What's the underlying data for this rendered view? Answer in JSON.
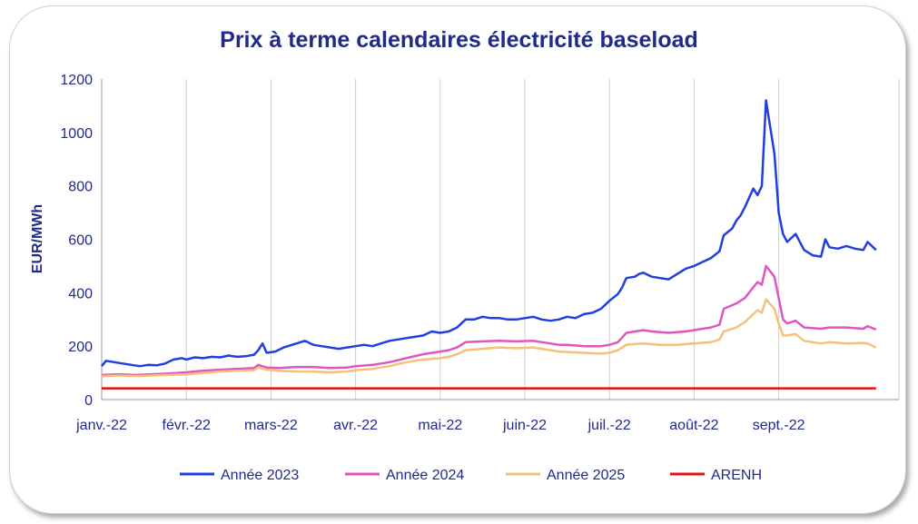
{
  "chart_data": {
    "type": "line",
    "title": "Prix à terme calendaires électricité baseload",
    "xlabel": "",
    "ylabel": "EUR/MWh",
    "ylim": [
      0,
      1200
    ],
    "yticks": [
      0,
      200,
      400,
      600,
      800,
      1000,
      1200
    ],
    "xlim": [
      0,
      8.7
    ],
    "xticks": [
      {
        "pos": 0,
        "label": "janv.-22"
      },
      {
        "pos": 1,
        "label": "févr.-22"
      },
      {
        "pos": 2,
        "label": "mars-22"
      },
      {
        "pos": 3,
        "label": "avr.-22"
      },
      {
        "pos": 4,
        "label": "mai-22"
      },
      {
        "pos": 5,
        "label": "juin-22"
      },
      {
        "pos": 6,
        "label": "juil.-22"
      },
      {
        "pos": 7,
        "label": "août-22"
      },
      {
        "pos": 8,
        "label": "sept.-22"
      }
    ],
    "grid": "vertical",
    "legend_position": "bottom",
    "series": [
      {
        "name": "Année 2023",
        "color": "#1f3fe0",
        "points": [
          [
            0,
            125
          ],
          [
            0.05,
            145
          ],
          [
            0.15,
            140
          ],
          [
            0.25,
            135
          ],
          [
            0.35,
            130
          ],
          [
            0.45,
            125
          ],
          [
            0.55,
            130
          ],
          [
            0.65,
            128
          ],
          [
            0.75,
            135
          ],
          [
            0.85,
            150
          ],
          [
            0.95,
            155
          ],
          [
            1.0,
            150
          ],
          [
            1.1,
            158
          ],
          [
            1.2,
            155
          ],
          [
            1.3,
            160
          ],
          [
            1.4,
            158
          ],
          [
            1.5,
            165
          ],
          [
            1.6,
            160
          ],
          [
            1.7,
            162
          ],
          [
            1.8,
            168
          ],
          [
            1.85,
            185
          ],
          [
            1.9,
            210
          ],
          [
            1.95,
            175
          ],
          [
            2.05,
            180
          ],
          [
            2.15,
            195
          ],
          [
            2.25,
            205
          ],
          [
            2.35,
            215
          ],
          [
            2.4,
            220
          ],
          [
            2.5,
            205
          ],
          [
            2.6,
            200
          ],
          [
            2.7,
            195
          ],
          [
            2.8,
            190
          ],
          [
            2.9,
            195
          ],
          [
            3.0,
            200
          ],
          [
            3.1,
            205
          ],
          [
            3.2,
            200
          ],
          [
            3.3,
            210
          ],
          [
            3.4,
            220
          ],
          [
            3.5,
            225
          ],
          [
            3.6,
            230
          ],
          [
            3.7,
            235
          ],
          [
            3.8,
            240
          ],
          [
            3.9,
            255
          ],
          [
            4.0,
            250
          ],
          [
            4.1,
            255
          ],
          [
            4.2,
            270
          ],
          [
            4.3,
            300
          ],
          [
            4.4,
            300
          ],
          [
            4.5,
            310
          ],
          [
            4.6,
            305
          ],
          [
            4.7,
            305
          ],
          [
            4.8,
            300
          ],
          [
            4.9,
            300
          ],
          [
            5.0,
            305
          ],
          [
            5.1,
            310
          ],
          [
            5.2,
            300
          ],
          [
            5.3,
            295
          ],
          [
            5.4,
            300
          ],
          [
            5.5,
            310
          ],
          [
            5.6,
            305
          ],
          [
            5.7,
            320
          ],
          [
            5.8,
            325
          ],
          [
            5.9,
            340
          ],
          [
            6.0,
            370
          ],
          [
            6.1,
            395
          ],
          [
            6.15,
            420
          ],
          [
            6.2,
            455
          ],
          [
            6.3,
            460
          ],
          [
            6.35,
            470
          ],
          [
            6.4,
            475
          ],
          [
            6.5,
            460
          ],
          [
            6.6,
            455
          ],
          [
            6.7,
            450
          ],
          [
            6.8,
            470
          ],
          [
            6.9,
            490
          ],
          [
            7.0,
            500
          ],
          [
            7.1,
            515
          ],
          [
            7.2,
            530
          ],
          [
            7.3,
            555
          ],
          [
            7.35,
            615
          ],
          [
            7.45,
            640
          ],
          [
            7.5,
            670
          ],
          [
            7.55,
            690
          ],
          [
            7.6,
            720
          ],
          [
            7.7,
            790
          ],
          [
            7.75,
            765
          ],
          [
            7.8,
            800
          ],
          [
            7.85,
            1120
          ],
          [
            7.95,
            920
          ],
          [
            8.0,
            700
          ],
          [
            8.05,
            620
          ],
          [
            8.1,
            590
          ],
          [
            8.2,
            620
          ],
          [
            8.3,
            560
          ],
          [
            8.4,
            540
          ],
          [
            8.5,
            535
          ],
          [
            8.55,
            600
          ],
          [
            8.6,
            570
          ],
          [
            8.7,
            565
          ],
          [
            8.8,
            575
          ],
          [
            8.9,
            565
          ],
          [
            9.0,
            560
          ],
          [
            9.05,
            590
          ],
          [
            9.15,
            560
          ]
        ]
      },
      {
        "name": "Année 2024",
        "color": "#e055c0",
        "points": [
          [
            0,
            92
          ],
          [
            0.2,
            95
          ],
          [
            0.4,
            92
          ],
          [
            0.6,
            95
          ],
          [
            0.8,
            98
          ],
          [
            1.0,
            102
          ],
          [
            1.2,
            108
          ],
          [
            1.4,
            112
          ],
          [
            1.6,
            115
          ],
          [
            1.8,
            118
          ],
          [
            1.85,
            130
          ],
          [
            1.95,
            120
          ],
          [
            2.1,
            118
          ],
          [
            2.3,
            122
          ],
          [
            2.5,
            122
          ],
          [
            2.7,
            118
          ],
          [
            2.9,
            120
          ],
          [
            3.0,
            125
          ],
          [
            3.2,
            130
          ],
          [
            3.4,
            140
          ],
          [
            3.6,
            155
          ],
          [
            3.8,
            170
          ],
          [
            4.0,
            180
          ],
          [
            4.1,
            185
          ],
          [
            4.2,
            195
          ],
          [
            4.3,
            215
          ],
          [
            4.5,
            218
          ],
          [
            4.7,
            220
          ],
          [
            4.9,
            218
          ],
          [
            5.1,
            220
          ],
          [
            5.3,
            210
          ],
          [
            5.4,
            205
          ],
          [
            5.5,
            205
          ],
          [
            5.7,
            200
          ],
          [
            5.9,
            200
          ],
          [
            6.0,
            205
          ],
          [
            6.1,
            215
          ],
          [
            6.2,
            250
          ],
          [
            6.3,
            255
          ],
          [
            6.4,
            260
          ],
          [
            6.5,
            255
          ],
          [
            6.7,
            250
          ],
          [
            6.9,
            255
          ],
          [
            7.1,
            265
          ],
          [
            7.2,
            270
          ],
          [
            7.3,
            280
          ],
          [
            7.35,
            340
          ],
          [
            7.5,
            360
          ],
          [
            7.6,
            380
          ],
          [
            7.7,
            420
          ],
          [
            7.75,
            440
          ],
          [
            7.8,
            430
          ],
          [
            7.85,
            500
          ],
          [
            7.95,
            460
          ],
          [
            8.0,
            380
          ],
          [
            8.05,
            300
          ],
          [
            8.1,
            285
          ],
          [
            8.2,
            295
          ],
          [
            8.3,
            270
          ],
          [
            8.5,
            265
          ],
          [
            8.6,
            270
          ],
          [
            8.8,
            270
          ],
          [
            9.0,
            265
          ],
          [
            9.05,
            275
          ],
          [
            9.15,
            262
          ]
        ]
      },
      {
        "name": "Année 2025",
        "color": "#f5c07a",
        "points": [
          [
            0,
            88
          ],
          [
            0.2,
            90
          ],
          [
            0.4,
            88
          ],
          [
            0.6,
            90
          ],
          [
            0.8,
            92
          ],
          [
            1.0,
            95
          ],
          [
            1.2,
            100
          ],
          [
            1.4,
            105
          ],
          [
            1.6,
            108
          ],
          [
            1.8,
            110
          ],
          [
            1.85,
            120
          ],
          [
            1.95,
            112
          ],
          [
            2.1,
            108
          ],
          [
            2.3,
            105
          ],
          [
            2.5,
            105
          ],
          [
            2.7,
            102
          ],
          [
            2.9,
            105
          ],
          [
            3.0,
            110
          ],
          [
            3.2,
            115
          ],
          [
            3.4,
            125
          ],
          [
            3.6,
            140
          ],
          [
            3.8,
            150
          ],
          [
            4.0,
            155
          ],
          [
            4.1,
            160
          ],
          [
            4.2,
            170
          ],
          [
            4.3,
            185
          ],
          [
            4.5,
            190
          ],
          [
            4.7,
            195
          ],
          [
            4.9,
            192
          ],
          [
            5.1,
            195
          ],
          [
            5.3,
            185
          ],
          [
            5.4,
            180
          ],
          [
            5.5,
            178
          ],
          [
            5.7,
            175
          ],
          [
            5.9,
            172
          ],
          [
            6.0,
            175
          ],
          [
            6.1,
            185
          ],
          [
            6.2,
            205
          ],
          [
            6.3,
            208
          ],
          [
            6.4,
            210
          ],
          [
            6.6,
            205
          ],
          [
            6.8,
            205
          ],
          [
            7.0,
            210
          ],
          [
            7.2,
            215
          ],
          [
            7.3,
            225
          ],
          [
            7.35,
            255
          ],
          [
            7.5,
            270
          ],
          [
            7.6,
            290
          ],
          [
            7.7,
            320
          ],
          [
            7.75,
            335
          ],
          [
            7.8,
            325
          ],
          [
            7.85,
            375
          ],
          [
            7.95,
            340
          ],
          [
            8.0,
            285
          ],
          [
            8.05,
            240
          ],
          [
            8.1,
            240
          ],
          [
            8.2,
            245
          ],
          [
            8.3,
            220
          ],
          [
            8.5,
            210
          ],
          [
            8.6,
            215
          ],
          [
            8.8,
            210
          ],
          [
            9.0,
            212
          ],
          [
            9.05,
            210
          ],
          [
            9.15,
            195
          ]
        ]
      },
      {
        "name": "ARENH",
        "color": "#e01010",
        "points": [
          [
            0,
            42
          ],
          [
            9.15,
            42
          ]
        ]
      }
    ]
  }
}
